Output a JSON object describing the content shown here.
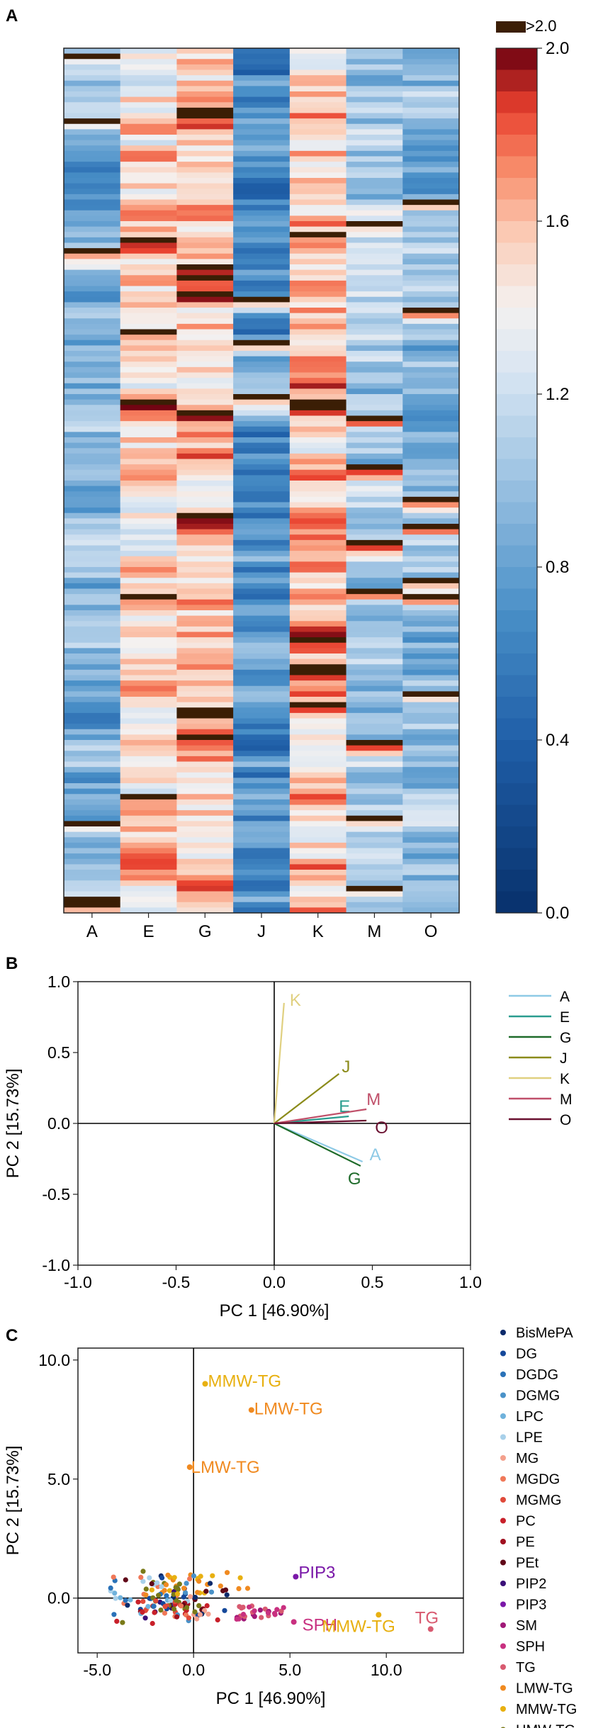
{
  "panels": {
    "a": "A",
    "b": "B",
    "c": "C"
  },
  "chart_data": [
    {
      "type": "heatmap",
      "panel": "A",
      "columns": [
        "A",
        "E",
        "G",
        "J",
        "K",
        "M",
        "O"
      ],
      "n_rows": 160,
      "row_labels_shown": false,
      "colorbar": {
        "min": 0.0,
        "max": 2.0,
        "ticks": [
          0.0,
          0.4,
          0.8,
          1.2,
          1.6,
          2.0
        ],
        "tick_labels": [
          "0.0",
          "0.4",
          "0.8",
          "1.2",
          "1.6",
          "2.0"
        ],
        "overflow_label": ">2.0",
        "low_color": "#0a3570",
        "mid_color": "#f4f1f0",
        "high_color": "#6a0010",
        "overflow_color": "#3b1e05"
      },
      "column_means": [
        0.88,
        1.47,
        1.55,
        0.72,
        1.62,
        1.07,
        0.93
      ]
    },
    {
      "type": "scatter",
      "subtype": "loadings",
      "panel": "B",
      "xlabel": "PC 1 [46.90%]",
      "ylabel": "PC 2 [15.73%]",
      "xlim": [
        -1.0,
        1.0
      ],
      "ylim": [
        -1.0,
        1.0
      ],
      "xticks": [
        "-1.0",
        "-0.5",
        "0.0",
        "0.5",
        "1.0"
      ],
      "yticks": [
        "-1.0",
        "-0.5",
        "0.0",
        "0.5",
        "1.0"
      ],
      "grid": false,
      "legend_position": "right",
      "series": [
        {
          "name": "A",
          "x": 0.45,
          "y": -0.27,
          "color": "#8ecae6"
        },
        {
          "name": "E",
          "x": 0.38,
          "y": 0.05,
          "color": "#2a9d8f"
        },
        {
          "name": "G",
          "x": 0.44,
          "y": -0.3,
          "color": "#1e6b2a"
        },
        {
          "name": "J",
          "x": 0.33,
          "y": 0.35,
          "color": "#8b8b1a"
        },
        {
          "name": "K",
          "x": 0.05,
          "y": 0.85,
          "color": "#e0d080"
        },
        {
          "name": "M",
          "x": 0.47,
          "y": 0.1,
          "color": "#c0506a"
        },
        {
          "name": "O",
          "x": 0.47,
          "y": 0.02,
          "color": "#6a1030"
        }
      ]
    },
    {
      "type": "scatter",
      "subtype": "scores",
      "panel": "C",
      "xlabel": "PC 1 [46.90%]",
      "ylabel": "PC 2 [15.73%]",
      "xlim": [
        -6.0,
        14.0
      ],
      "ylim": [
        -2.3,
        10.5
      ],
      "xticks": [
        "-5.0",
        "0.0",
        "5.0",
        "10.0"
      ],
      "yticks": [
        "0.0",
        "5.0",
        "10.0"
      ],
      "grid": false,
      "legend_position": "right",
      "legend": [
        {
          "name": "BisMePA",
          "color": "#0b2a6b"
        },
        {
          "name": "DG",
          "color": "#15489a"
        },
        {
          "name": "DGDG",
          "color": "#2a72b8"
        },
        {
          "name": "DGMG",
          "color": "#4a92c8"
        },
        {
          "name": "LPC",
          "color": "#6fb2dc"
        },
        {
          "name": "LPE",
          "color": "#a8d0ea"
        },
        {
          "name": "MG",
          "color": "#f4a08c"
        },
        {
          "name": "MGDG",
          "color": "#f07858"
        },
        {
          "name": "MGMG",
          "color": "#e04a3a"
        },
        {
          "name": "PC",
          "color": "#c8202a"
        },
        {
          "name": "PE",
          "color": "#a01020"
        },
        {
          "name": "PEt",
          "color": "#600818"
        },
        {
          "name": "PIP2",
          "color": "#3a1078"
        },
        {
          "name": "PIP3",
          "color": "#7a18a8"
        },
        {
          "name": "SM",
          "color": "#a01878"
        },
        {
          "name": "SPH",
          "color": "#c83080"
        },
        {
          "name": "TG",
          "color": "#d85a70"
        },
        {
          "name": "LMW-TG",
          "color": "#f08a20"
        },
        {
          "name": "MMW-TG",
          "color": "#e8b010"
        },
        {
          "name": "HMW-TG",
          "color": "#7a7a18"
        }
      ],
      "annotations": [
        {
          "label": "MMW-TG",
          "x": 0.6,
          "y": 9.0,
          "class": "MMW-TG"
        },
        {
          "label": "LMW-TG",
          "x": 3.0,
          "y": 7.9,
          "class": "LMW-TG"
        },
        {
          "label": "LMW-TG",
          "x": -0.2,
          "y": 5.5,
          "class": "LMW-TG"
        },
        {
          "label": "PIP3",
          "x": 5.3,
          "y": 0.9,
          "class": "PIP3"
        },
        {
          "label": "SPH",
          "x": 5.2,
          "y": -1.0,
          "class": "SPH"
        },
        {
          "label": "MMW-TG",
          "x": 9.6,
          "y": -0.7,
          "class": "MMW-TG"
        },
        {
          "label": "TG",
          "x": 12.3,
          "y": -1.3,
          "class": "TG"
        }
      ]
    }
  ]
}
